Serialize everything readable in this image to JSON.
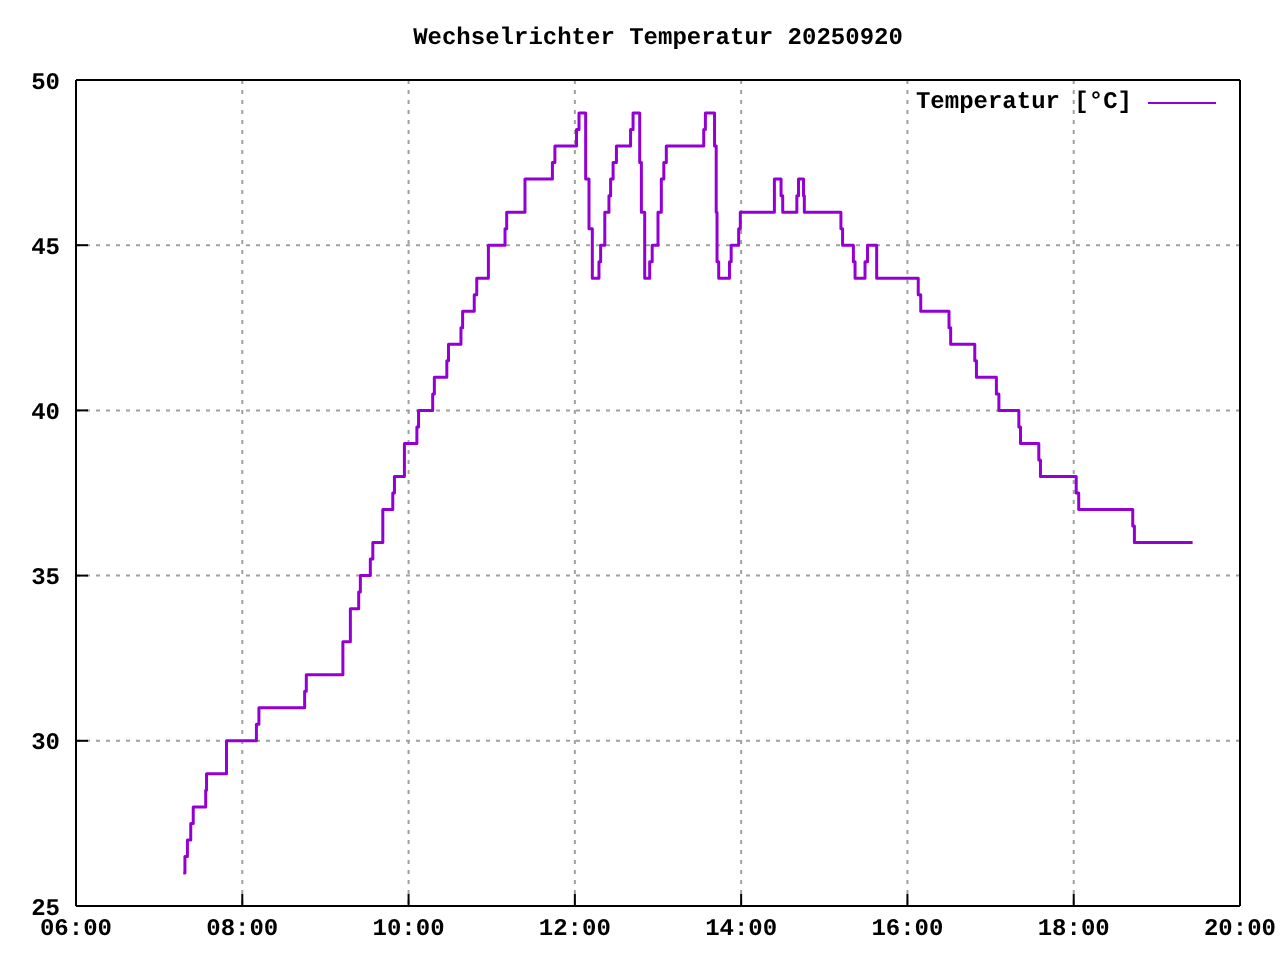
{
  "chart_data": {
    "type": "step",
    "title": "Wechselrichter Temperatur 20250920",
    "x": [
      7.29,
      7.31,
      7.34,
      7.38,
      7.41,
      7.56,
      7.57,
      7.81,
      8.17,
      8.2,
      8.75,
      8.77,
      9.21,
      9.3,
      9.4,
      9.42,
      9.54,
      9.57,
      9.69,
      9.81,
      9.83,
      9.95,
      10.1,
      10.12,
      10.29,
      10.31,
      10.46,
      10.48,
      10.63,
      10.65,
      10.79,
      10.82,
      10.96,
      11.16,
      11.18,
      11.4,
      11.73,
      11.76,
      12.02,
      12.05,
      12.13,
      12.17,
      12.21,
      12.29,
      12.31,
      12.36,
      12.41,
      12.43,
      12.46,
      12.5,
      12.67,
      12.7,
      12.78,
      12.8,
      12.84,
      12.9,
      12.93,
      13.0,
      13.04,
      13.07,
      13.1,
      13.55,
      13.57,
      13.68,
      13.7,
      13.71,
      13.73,
      13.86,
      13.88,
      13.97,
      13.99,
      14.4,
      14.48,
      14.5,
      14.67,
      14.69,
      14.75,
      14.76,
      15.2,
      15.22,
      15.35,
      15.37,
      15.49,
      15.52,
      15.63,
      16.13,
      16.16,
      16.5,
      16.52,
      16.81,
      16.83,
      17.07,
      17.1,
      17.34,
      17.36,
      17.58,
      17.6,
      18.03,
      18.06,
      18.71,
      18.73,
      19.43
    ],
    "series": [
      {
        "name": "Temperatur [°C]",
        "color": "#9400d3",
        "values": [
          26,
          26.5,
          27,
          27.5,
          28,
          28.5,
          29,
          30,
          30.5,
          31,
          31.5,
          32,
          33,
          34,
          34.5,
          35,
          35.5,
          36,
          37,
          37.5,
          38,
          39,
          39.5,
          40,
          40.5,
          41,
          41.5,
          42,
          42.5,
          43,
          43.5,
          44,
          45,
          45.5,
          46,
          47,
          47.5,
          48,
          48.5,
          49,
          47,
          45.5,
          44,
          44.5,
          45,
          46,
          46.5,
          47,
          47.5,
          48,
          48.5,
          49,
          47.5,
          46,
          44,
          44.5,
          45,
          46,
          47,
          47.5,
          48,
          48.5,
          49,
          48,
          46,
          44.5,
          44,
          44.5,
          45,
          45.5,
          46,
          47,
          46.5,
          46,
          46.5,
          47,
          46.5,
          46,
          45.5,
          45,
          44.5,
          44,
          44.5,
          45,
          44,
          43.5,
          43,
          42.5,
          42,
          41.5,
          41,
          40.5,
          40,
          39.5,
          39,
          38.5,
          38,
          37.5,
          37,
          36.5,
          36,
          36
        ]
      }
    ],
    "xlim": [
      6,
      20
    ],
    "xticks": [
      {
        "value": 6,
        "label": "06:00"
      },
      {
        "value": 8,
        "label": "08:00"
      },
      {
        "value": 10,
        "label": "10:00"
      },
      {
        "value": 12,
        "label": "12:00"
      },
      {
        "value": 14,
        "label": "14:00"
      },
      {
        "value": 16,
        "label": "16:00"
      },
      {
        "value": 18,
        "label": "18:00"
      },
      {
        "value": 20,
        "label": "20:00"
      }
    ],
    "ylim": [
      25,
      50
    ],
    "yticks": [
      25,
      30,
      35,
      40,
      45,
      50
    ],
    "grid": true,
    "legend": "top right"
  }
}
